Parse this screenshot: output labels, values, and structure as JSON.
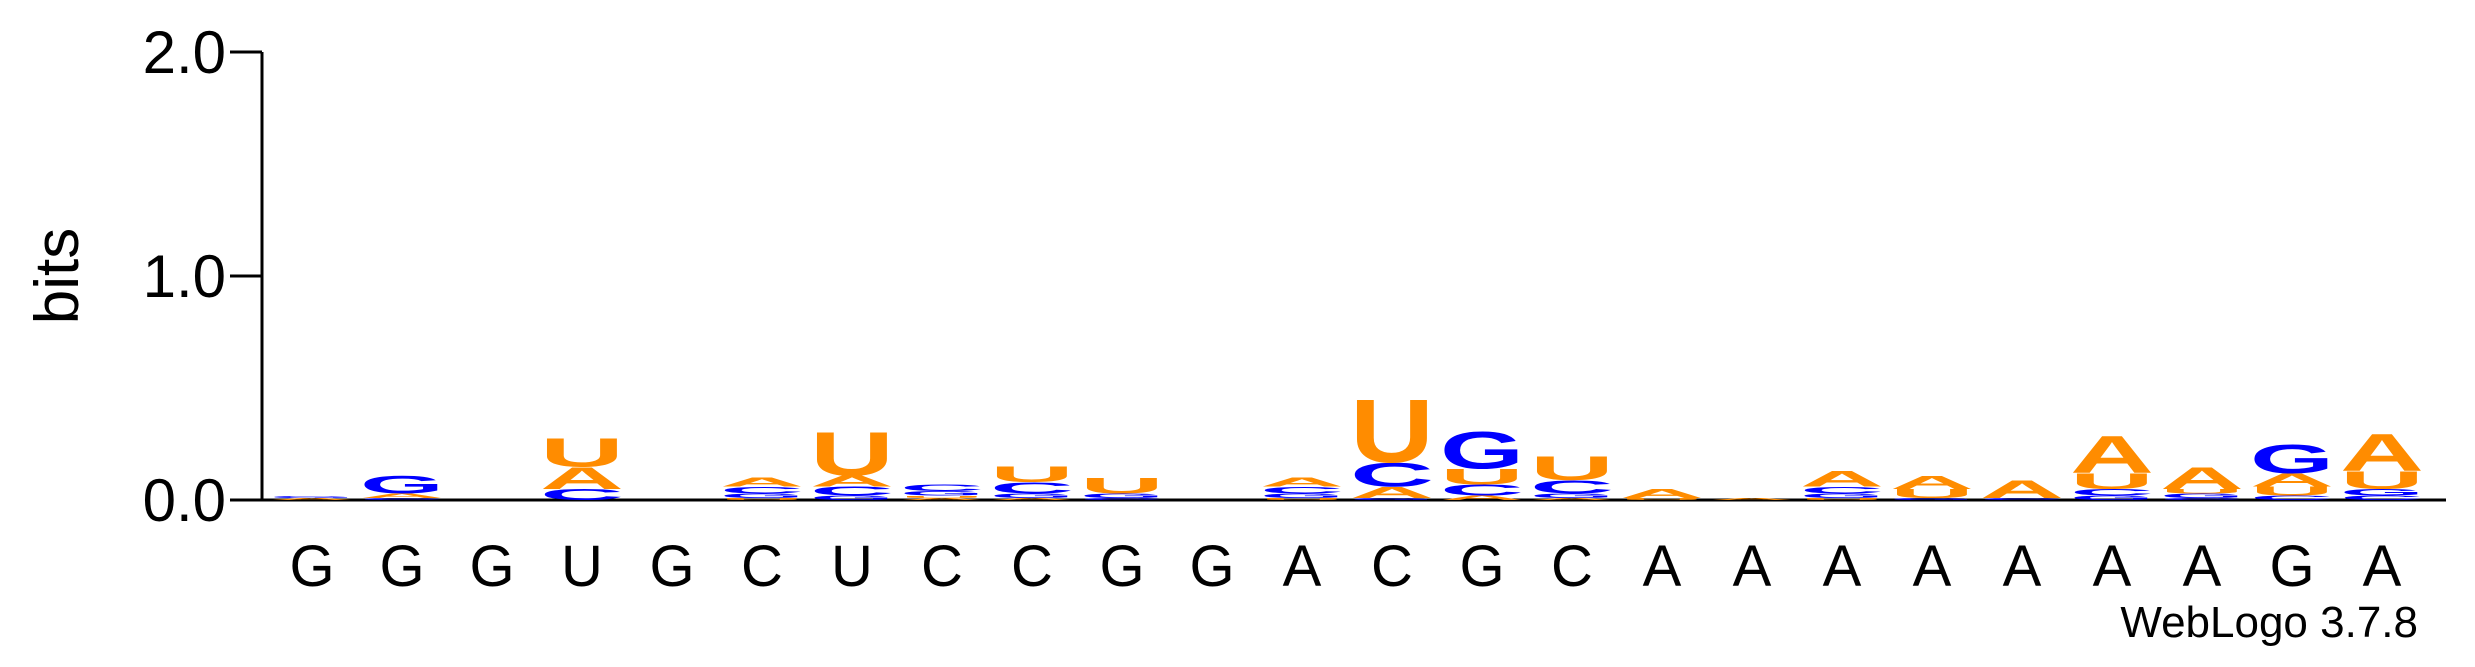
{
  "chart_data": {
    "type": "logo",
    "ylabel": "bits",
    "footer": "WebLogo 3.7.8",
    "ylim": [
      0,
      2
    ],
    "yticks": [
      {
        "value": 0,
        "label": "0.0"
      },
      {
        "value": 1,
        "label": "1.0"
      },
      {
        "value": 2,
        "label": "2.0"
      }
    ],
    "categories": [
      "G",
      "G",
      "G",
      "U",
      "G",
      "C",
      "U",
      "C",
      "C",
      "G",
      "G",
      "A",
      "C",
      "G",
      "C",
      "A",
      "A",
      "A",
      "A",
      "A",
      "A",
      "A",
      "G",
      "A"
    ],
    "series": [
      {
        "name": "A",
        "color": "#ff8c00",
        "values": [
          0.01,
          0.02,
          0.0,
          0.1,
          0.0,
          0.04,
          0.05,
          0.01,
          0.01,
          0.0,
          0.0,
          0.04,
          0.05,
          0.02,
          0.01,
          0.04,
          0.01,
          0.07,
          0.06,
          0.08,
          0.17,
          0.1,
          0.06,
          0.17
        ]
      },
      {
        "name": "C",
        "color": "#0000ff",
        "values": [
          0.0,
          0.01,
          0.0,
          0.05,
          0.0,
          0.03,
          0.04,
          0.03,
          0.05,
          0.01,
          0.0,
          0.03,
          0.11,
          0.05,
          0.06,
          0.0,
          0.0,
          0.03,
          0.0,
          0.01,
          0.03,
          0.01,
          0.02,
          0.02
        ]
      },
      {
        "name": "G",
        "color": "#0000ff",
        "values": [
          0.01,
          0.08,
          0.0,
          0.0,
          0.0,
          0.02,
          0.02,
          0.02,
          0.02,
          0.02,
          0.0,
          0.02,
          0.01,
          0.17,
          0.02,
          0.0,
          0.0,
          0.02,
          0.01,
          0.0,
          0.02,
          0.02,
          0.13,
          0.03
        ]
      },
      {
        "name": "U",
        "color": "#ff8c00",
        "values": [
          0.0,
          0.0,
          0.0,
          0.13,
          0.0,
          0.01,
          0.2,
          0.01,
          0.07,
          0.07,
          0.0,
          0.01,
          0.29,
          0.07,
          0.11,
          0.01,
          0.0,
          0.01,
          0.04,
          0.0,
          0.07,
          0.02,
          0.04,
          0.08
        ]
      }
    ]
  }
}
